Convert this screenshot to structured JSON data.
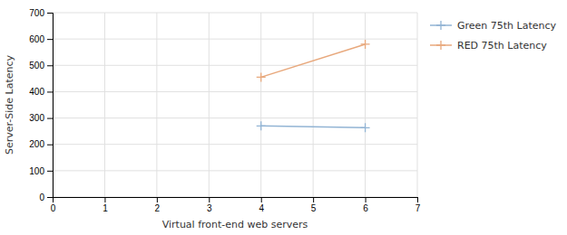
{
  "chart_data": {
    "type": "line",
    "x": [
      4,
      6
    ],
    "series": [
      {
        "name": "Green 75th Latency",
        "color": "#92b4d4",
        "values": [
          270,
          263
        ]
      },
      {
        "name": "RED 75th Latency",
        "color": "#e8a87c",
        "values": [
          455,
          580
        ]
      }
    ],
    "xlabel": "Virtual front-end web servers",
    "ylabel": "Server-Side Latency",
    "xlim": [
      0,
      7
    ],
    "ylim": [
      0,
      700
    ],
    "xticks": [
      0,
      1,
      2,
      3,
      4,
      5,
      6,
      7
    ],
    "yticks": [
      0,
      100,
      200,
      300,
      400,
      500,
      600,
      700
    ],
    "marker": "plus",
    "grid": true,
    "legend": "right"
  }
}
